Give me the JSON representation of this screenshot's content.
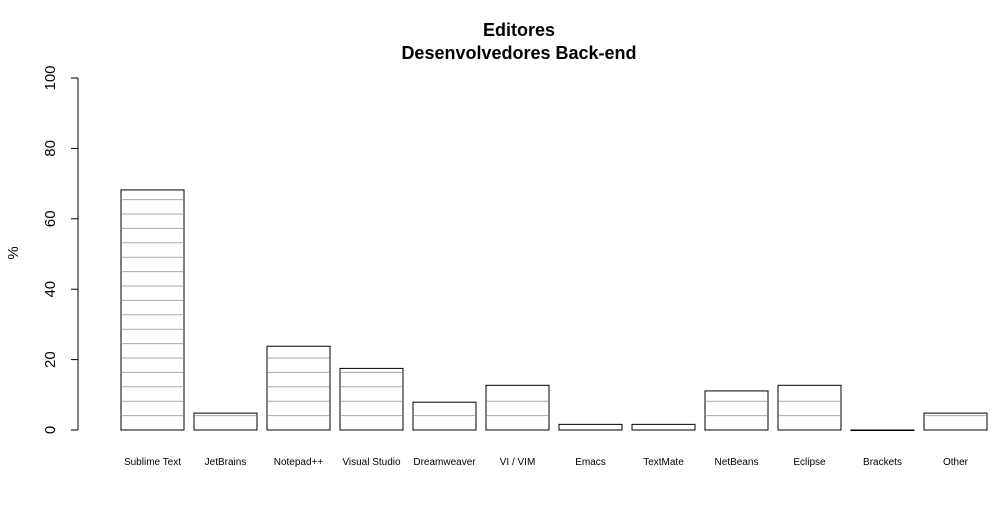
{
  "chart_data": {
    "type": "bar",
    "title": "Editores",
    "subtitle": "Desenvolvedores Back-end",
    "xlabel": "",
    "ylabel": "%",
    "ylim": [
      0,
      100
    ],
    "yticks": [
      0,
      20,
      40,
      60,
      80,
      100
    ],
    "categories": [
      "Sublime Text",
      "JetBrains",
      "Notepad++",
      "Visual Studio",
      "Dreamweaver",
      "VI / VIM",
      "Emacs",
      "TextMate",
      "NetBeans",
      "Eclipse",
      "Brackets",
      "Other"
    ],
    "values": [
      68.2,
      4.8,
      23.8,
      17.5,
      7.9,
      12.7,
      1.6,
      1.6,
      11.1,
      12.7,
      0,
      4.8
    ],
    "grid": false,
    "hatch": "horizontal lines",
    "colors": {
      "bar_fill": "#ffffff",
      "bar_stroke": "#000000",
      "hatch": "#aaaaaa"
    }
  }
}
